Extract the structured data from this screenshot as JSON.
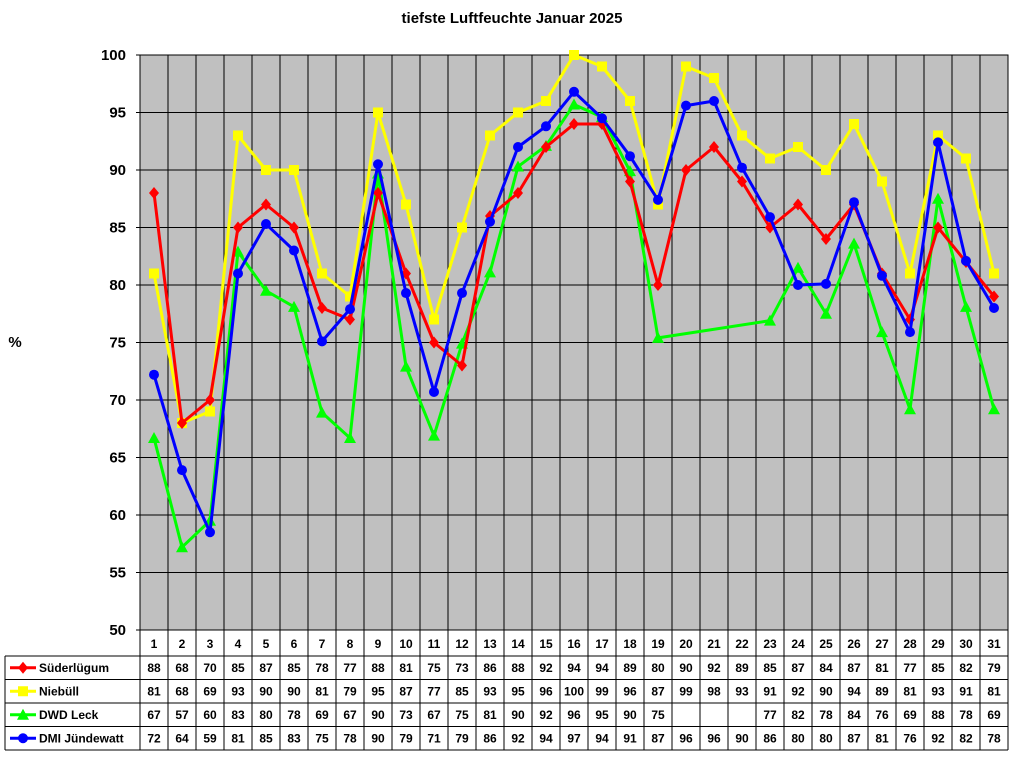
{
  "chart_data": {
    "type": "line",
    "title": "tiefste Luftfeuchte Januar 2025",
    "xlabel": "",
    "ylabel": "%",
    "ylim": [
      50,
      100
    ],
    "yticks": [
      50,
      55,
      60,
      65,
      70,
      75,
      80,
      85,
      90,
      95,
      100
    ],
    "grid": true,
    "legend": "data-table-below",
    "plot_background": "#c0c0c0",
    "categories": [
      "1",
      "2",
      "3",
      "4",
      "5",
      "6",
      "7",
      "8",
      "9",
      "10",
      "11",
      "12",
      "13",
      "14",
      "15",
      "16",
      "17",
      "18",
      "19",
      "20",
      "21",
      "22",
      "23",
      "24",
      "25",
      "26",
      "27",
      "28",
      "29",
      "30",
      "31"
    ],
    "series": [
      {
        "name": "Süderlügum",
        "color": "#ff0000",
        "marker": "diamond",
        "values": [
          88,
          68,
          70,
          85,
          87,
          85,
          78,
          77,
          88,
          81,
          75,
          73,
          86,
          88,
          92,
          94,
          94,
          89,
          80,
          90,
          92,
          89,
          85,
          87,
          84,
          87,
          81,
          77,
          85,
          82,
          79
        ]
      },
      {
        "name": "Niebüll",
        "color": "#ffff00",
        "marker": "square",
        "values": [
          81,
          68,
          69,
          93,
          90,
          90,
          81,
          79,
          95,
          87,
          77,
          85,
          93,
          95,
          96,
          100,
          99,
          96,
          87,
          99,
          98,
          93,
          91,
          92,
          90,
          94,
          89,
          81,
          93,
          91,
          81
        ]
      },
      {
        "name": "DWD Leck",
        "color": "#00ff00",
        "marker": "triangle",
        "values": [
          67,
          57,
          60,
          83,
          80,
          78,
          69,
          67,
          90,
          73,
          67,
          75,
          81,
          90,
          92,
          96,
          95,
          90,
          75,
          null,
          null,
          null,
          77,
          82,
          78,
          84,
          76,
          69,
          88,
          78,
          69
        ],
        "plot_values": [
          66.7,
          57.2,
          59.5,
          82.9,
          79.5,
          78.1,
          68.9,
          66.7,
          89.7,
          72.9,
          66.9,
          74.9,
          81.1,
          90.3,
          92.1,
          95.7,
          94.6,
          89.9,
          75.4,
          null,
          null,
          null,
          76.9,
          81.5,
          77.5,
          83.6,
          75.9,
          69.2,
          87.5,
          78.1,
          69.2
        ]
      },
      {
        "name": "DMI Jündewatt",
        "color": "#0000ff",
        "marker": "circle",
        "values": [
          72,
          64,
          59,
          81,
          85,
          83,
          75,
          78,
          90,
          79,
          71,
          79,
          86,
          92,
          94,
          97,
          94,
          91,
          87,
          96,
          96,
          90,
          86,
          80,
          80,
          87,
          81,
          76,
          92,
          82,
          78
        ],
        "plot_values": [
          72.2,
          63.9,
          58.5,
          81.0,
          85.3,
          83.0,
          75.1,
          77.9,
          90.5,
          79.3,
          70.7,
          79.3,
          85.5,
          92.0,
          93.8,
          96.8,
          94.5,
          91.2,
          87.4,
          95.6,
          96.0,
          90.2,
          85.9,
          80.0,
          80.1,
          87.2,
          80.8,
          75.9,
          92.4,
          82.1,
          78.0
        ]
      }
    ]
  }
}
